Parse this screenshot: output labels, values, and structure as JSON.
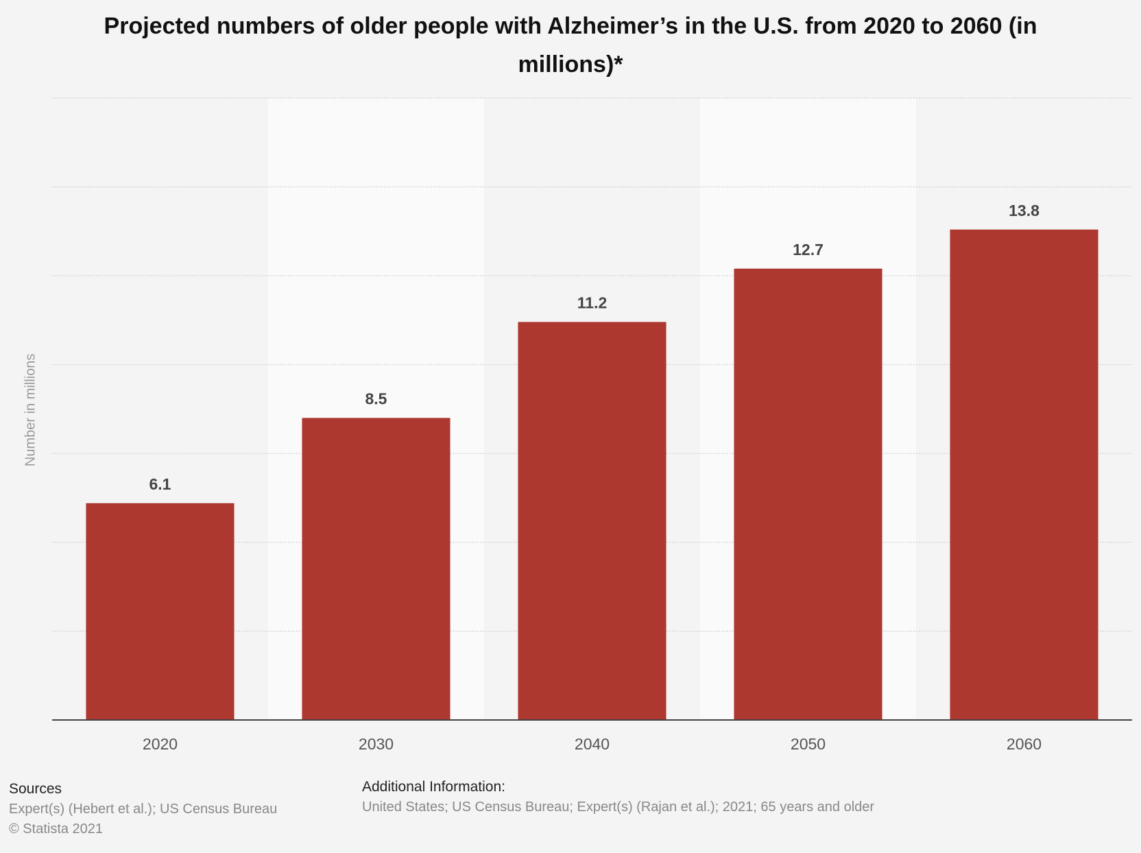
{
  "chart_data": {
    "type": "bar",
    "title": "Projected numbers of older people with Alzheimer’s in the U.S. from 2020 to 2060 (in millions)*",
    "y_label": "Number in millions",
    "categories": [
      "2020",
      "2030",
      "2040",
      "2050",
      "2060"
    ],
    "values": [
      6.1,
      8.5,
      11.2,
      12.7,
      13.8
    ],
    "color": "#ad3830",
    "ylim": [
      0,
      17.5
    ],
    "yticks": [
      0,
      2.5,
      5,
      7.5,
      10,
      12.5,
      15,
      17.5
    ],
    "grid": true
  },
  "footer": {
    "sources_heading": "Sources",
    "sources": "Expert(s) (Hebert et al.); US Census Bureau",
    "copyright": "© Statista 2021",
    "additional_heading": "Additional Information:",
    "additional": "United States; US Census Bureau; Expert(s) (Rajan et al.); 2021; 65 years and older"
  }
}
